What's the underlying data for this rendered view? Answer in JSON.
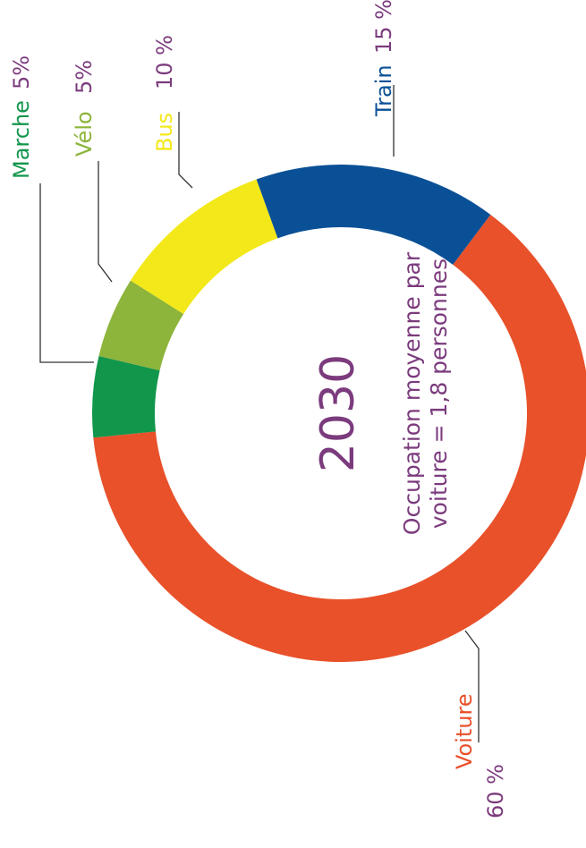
{
  "chart_data": {
    "type": "pie",
    "center_title": "2030",
    "annotation": [
      "Occupation moyenne par",
      "voiture = 1,8 personnes"
    ],
    "categories": [
      "Voiture",
      "Marche",
      "Vélo",
      "Bus",
      "Train"
    ],
    "values": [
      60,
      5,
      5,
      10,
      15
    ],
    "value_labels": [
      "60 %",
      "5%",
      "5%",
      "10 %",
      "15 %"
    ],
    "colors": [
      "#e8512a",
      "#11964c",
      "#8db43b",
      "#f3e81a",
      "#0a5096"
    ]
  }
}
